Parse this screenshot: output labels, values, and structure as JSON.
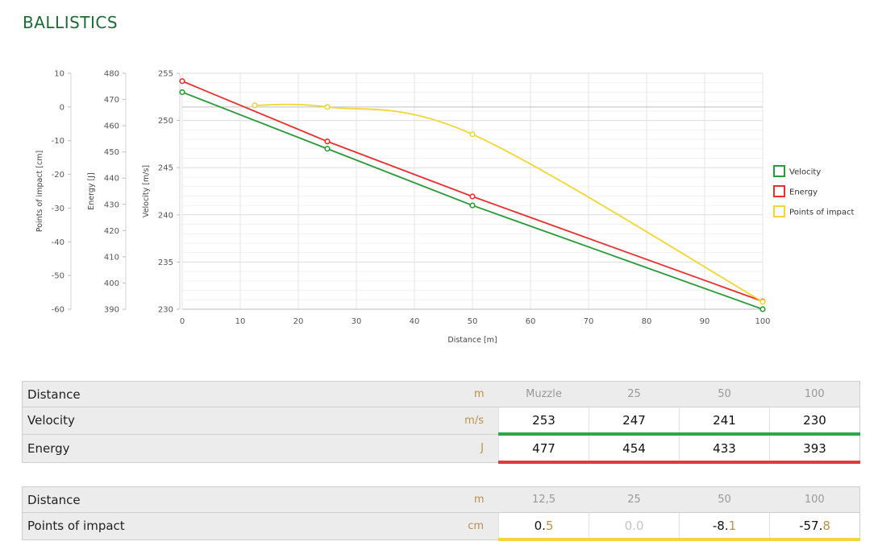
{
  "page": {
    "title": "BALLISTICS"
  },
  "chart_data": {
    "type": "line",
    "xlabel": "Distance [m]",
    "x_ticks": [
      0,
      10,
      20,
      30,
      40,
      50,
      60,
      70,
      80,
      90,
      100
    ],
    "xlim": [
      0,
      100
    ],
    "grid": true,
    "legend_position": "right",
    "axes": [
      {
        "id": "velocity",
        "label": "Velocity [m/s]",
        "ylim": [
          230,
          255
        ],
        "ticks": [
          230,
          235,
          240,
          245,
          250,
          255
        ]
      },
      {
        "id": "energy",
        "label": "Energy [J]",
        "ylim": [
          390,
          480
        ],
        "ticks": [
          390,
          400,
          410,
          420,
          430,
          440,
          450,
          460,
          470,
          480
        ]
      },
      {
        "id": "poi",
        "label": "Points of impact [cm]",
        "ylim": [
          -60,
          10
        ],
        "ticks": [
          -60,
          -50,
          -40,
          -30,
          -20,
          -10,
          0,
          10
        ]
      }
    ],
    "series": [
      {
        "name": "Velocity",
        "axis": "velocity",
        "color": "#2a9a3a",
        "smooth": false,
        "points": [
          [
            0,
            253
          ],
          [
            25,
            247
          ],
          [
            50,
            241
          ],
          [
            100,
            230
          ]
        ]
      },
      {
        "name": "Energy",
        "axis": "energy",
        "color": "#e8302f",
        "smooth": false,
        "points": [
          [
            0,
            477
          ],
          [
            25,
            454
          ],
          [
            50,
            433
          ],
          [
            100,
            393
          ]
        ]
      },
      {
        "name": "Points of impact",
        "axis": "poi",
        "color": "#f2d630",
        "smooth": true,
        "points": [
          [
            12.5,
            0.5
          ],
          [
            25,
            0.0
          ],
          [
            50,
            -8.1
          ],
          [
            100,
            -57.8
          ]
        ]
      }
    ]
  },
  "table1": {
    "rows": [
      {
        "label": "Distance",
        "unit": "m",
        "header": true,
        "values": [
          "Muzzle",
          "25",
          "50",
          "100"
        ]
      },
      {
        "label": "Velocity",
        "unit": "m/s",
        "color": "green",
        "values": [
          "253",
          "247",
          "241",
          "230"
        ]
      },
      {
        "label": "Energy",
        "unit": "J",
        "color": "red",
        "values": [
          "477",
          "454",
          "433",
          "393"
        ]
      }
    ]
  },
  "table2": {
    "rows": [
      {
        "label": "Distance",
        "unit": "m",
        "header": true,
        "values": [
          "12,5",
          "25",
          "50",
          "100"
        ]
      },
      {
        "label": "Points of impact",
        "unit": "cm",
        "color": "yellow",
        "values": [
          {
            "main": "0.",
            "frac": "5",
            "muted": false
          },
          {
            "main": "0.0",
            "frac": "",
            "muted": true
          },
          {
            "main": "-8.",
            "frac": "1",
            "muted": false
          },
          {
            "main": "-57.",
            "frac": "8",
            "muted": false
          }
        ]
      }
    ]
  }
}
